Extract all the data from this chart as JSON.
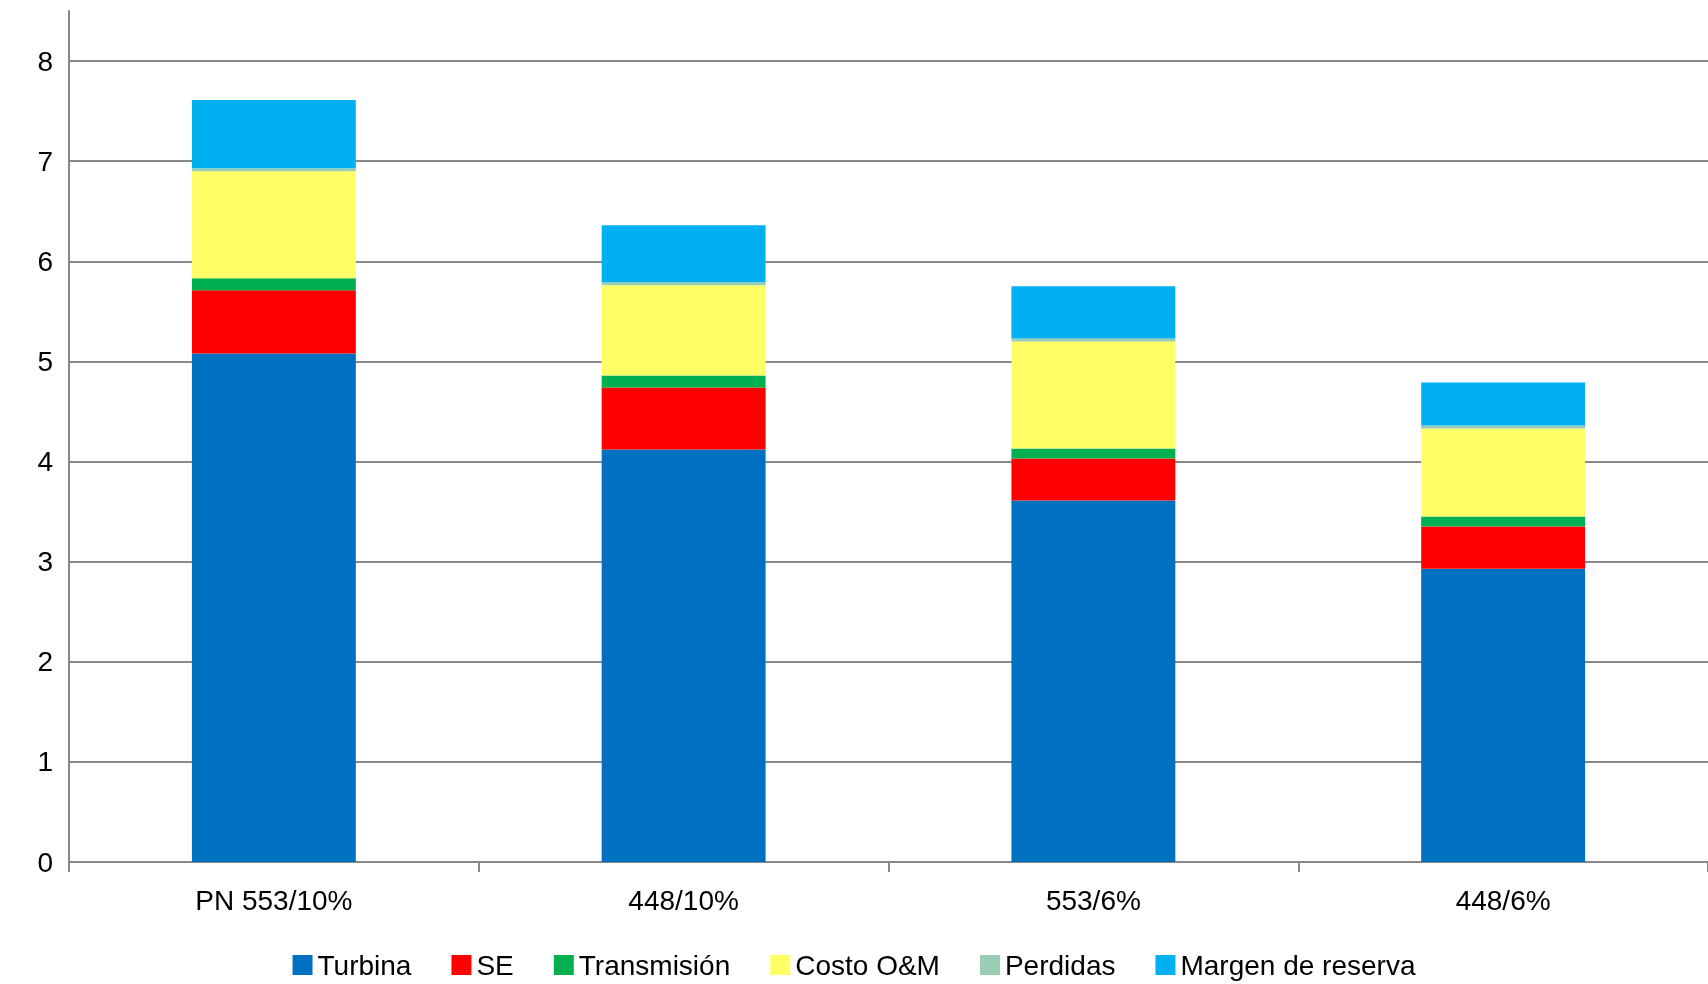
{
  "chart_data": {
    "type": "bar",
    "stacked": true,
    "categories": [
      "PN 553/10%",
      "448/10%",
      "553/6%",
      "448/6%"
    ],
    "series": [
      {
        "name": "Turbina",
        "color": "#0070c0",
        "values": [
          5.08,
          4.12,
          3.61,
          2.93
        ]
      },
      {
        "name": "SE",
        "color": "#ff0000",
        "values": [
          0.63,
          0.62,
          0.42,
          0.42
        ]
      },
      {
        "name": "Transmisión",
        "color": "#00b050",
        "values": [
          0.12,
          0.12,
          0.1,
          0.1
        ]
      },
      {
        "name": "Costo O&M",
        "color": "#ffff66",
        "values": [
          1.07,
          0.9,
          1.07,
          0.88
        ]
      },
      {
        "name": "Perdidas",
        "color": "#99cdb4",
        "values": [
          0.03,
          0.03,
          0.03,
          0.03
        ]
      },
      {
        "name": "Margen de reserva",
        "color": "#00b0f0",
        "values": [
          0.68,
          0.57,
          0.52,
          0.43
        ]
      }
    ],
    "ylim": [
      0,
      8.5
    ],
    "yticks": [
      0,
      1,
      2,
      3,
      4,
      5,
      6,
      7,
      8
    ],
    "grid": "y",
    "legend": "bottom"
  }
}
